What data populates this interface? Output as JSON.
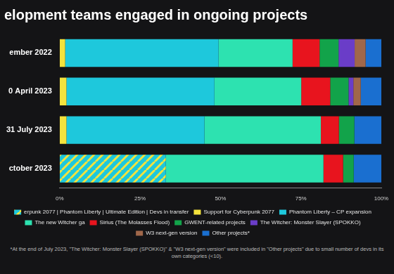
{
  "chart_data": {
    "type": "bar",
    "title": "elopment teams engaged in ongoing projects",
    "orientation": "horizontal",
    "stacked": true,
    "grid": false,
    "legend": "bottom",
    "categories": [
      "ember 2022",
      "0 April 2023",
      "31 July 2023",
      "ctober 2023"
    ],
    "xlim": [
      0,
      100
    ],
    "xticks": [
      {
        "value": 0,
        "label": "0%"
      },
      {
        "value": 25,
        "label": "25%"
      },
      {
        "value": 50,
        "label": "50%"
      },
      {
        "value": 75,
        "label": "75%"
      },
      {
        "value": 100,
        "label": "100%"
      }
    ],
    "series": [
      {
        "name": "erpunk 2077 | Phantom Liberty | Ultimate Edition | Devs in transfer",
        "color": "#1ec8dc",
        "marker": "striped",
        "values": [
          0,
          0,
          0,
          33
        ]
      },
      {
        "name": "Support for Cyberpunk 2077",
        "color": "#f4e33d",
        "values": [
          1.7,
          2.1,
          2.1,
          0
        ]
      },
      {
        "name": "Phantom Liberty – CP expansion",
        "color": "#1ec8dc",
        "values": [
          47.7,
          46,
          42.9,
          0
        ]
      },
      {
        "name": "The new Witcher ga",
        "color": "#2de2b0",
        "values": [
          23,
          27,
          36.2,
          49
        ]
      },
      {
        "name": "Sirius (The Molasses Flood)",
        "color": "#e8141e",
        "values": [
          8.4,
          9,
          5.6,
          6.1
        ]
      },
      {
        "name": "GWENT-related projects",
        "color": "#12a34a",
        "values": [
          5.9,
          5.7,
          4.8,
          3.3
        ]
      },
      {
        "name": "The Witcher: Monster Slayer (SPOKKO)",
        "color": "#6a3dc8",
        "values": [
          5,
          1.5,
          0,
          0
        ]
      },
      {
        "name": "W3 next-gen version",
        "color": "#a0674a",
        "values": [
          3.4,
          2.3,
          0,
          0
        ]
      },
      {
        "name": "Other projects*",
        "color": "#1a6fd0",
        "values": [
          4.9,
          6.4,
          8.4,
          8.6
        ]
      }
    ],
    "annotations": [
      "*At the end of July 2023, \"The Witcher: Monster Slayer (SPOKKO)\" & \"W3 next-gen version\" were included in \"Other projects\" due to small number of devs in its own categories (<10)."
    ]
  }
}
